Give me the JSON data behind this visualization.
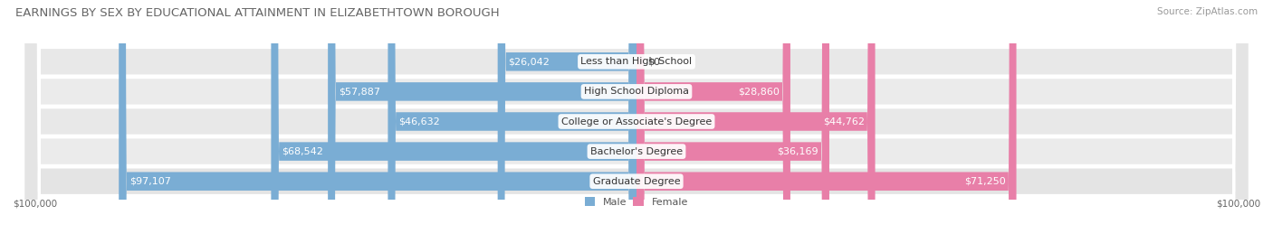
{
  "title": "EARNINGS BY SEX BY EDUCATIONAL ATTAINMENT IN ELIZABETHTOWN BOROUGH",
  "source": "Source: ZipAtlas.com",
  "categories": [
    "Less than High School",
    "High School Diploma",
    "College or Associate's Degree",
    "Bachelor's Degree",
    "Graduate Degree"
  ],
  "male_values": [
    26042,
    57887,
    46632,
    68542,
    97107
  ],
  "female_values": [
    0,
    28860,
    44762,
    36169,
    71250
  ],
  "male_labels": [
    "$26,042",
    "$57,887",
    "$46,632",
    "$68,542",
    "$97,107"
  ],
  "female_labels": [
    "$0",
    "$28,860",
    "$44,762",
    "$36,169",
    "$71,250"
  ],
  "male_color": "#7aadd4",
  "female_color": "#e87fa8",
  "row_colors": [
    "#e8e8e8",
    "#ebebeb",
    "#e8e8e8",
    "#ebebeb",
    "#e4e4e4"
  ],
  "max_value": 100000,
  "x_label_left": "$100,000",
  "x_label_right": "$100,000",
  "background_color": "#ffffff",
  "title_fontsize": 9.5,
  "label_fontsize": 8.0,
  "source_fontsize": 7.5
}
